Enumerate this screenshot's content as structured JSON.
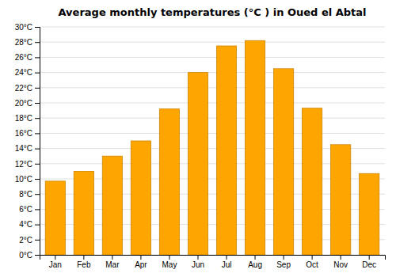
{
  "chart_data": {
    "type": "bar",
    "title": "Average monthly temperatures (°C ) in Oued el Abtal",
    "categories": [
      "Jan",
      "Feb",
      "Mar",
      "Apr",
      "May",
      "Jun",
      "Jul",
      "Aug",
      "Sep",
      "Oct",
      "Nov",
      "Dec"
    ],
    "values": [
      9.7,
      11.0,
      13.0,
      15.0,
      19.2,
      24.0,
      27.5,
      28.2,
      24.5,
      19.3,
      14.5,
      10.7
    ],
    "color": "#FFA500",
    "ylim": [
      0,
      30
    ],
    "yticks": [
      {
        "value": 0,
        "label": "0°C"
      },
      {
        "value": 2,
        "label": "2°C"
      },
      {
        "value": 4,
        "label": "4°C"
      },
      {
        "value": 6,
        "label": "6°C"
      },
      {
        "value": 8,
        "label": "8°C"
      },
      {
        "value": 10,
        "label": "10°C"
      },
      {
        "value": 12,
        "label": "12°C"
      },
      {
        "value": 14,
        "label": "14°C"
      },
      {
        "value": 16,
        "label": "16°C"
      },
      {
        "value": 18,
        "label": "18°C"
      },
      {
        "value": 20,
        "label": "20°C"
      },
      {
        "value": 22,
        "label": "22°C"
      },
      {
        "value": 24,
        "label": "24°C"
      },
      {
        "value": 26,
        "label": "26°C"
      },
      {
        "value": 28,
        "label": "28°C"
      },
      {
        "value": 30,
        "label": "30°C"
      }
    ],
    "grid": true
  }
}
